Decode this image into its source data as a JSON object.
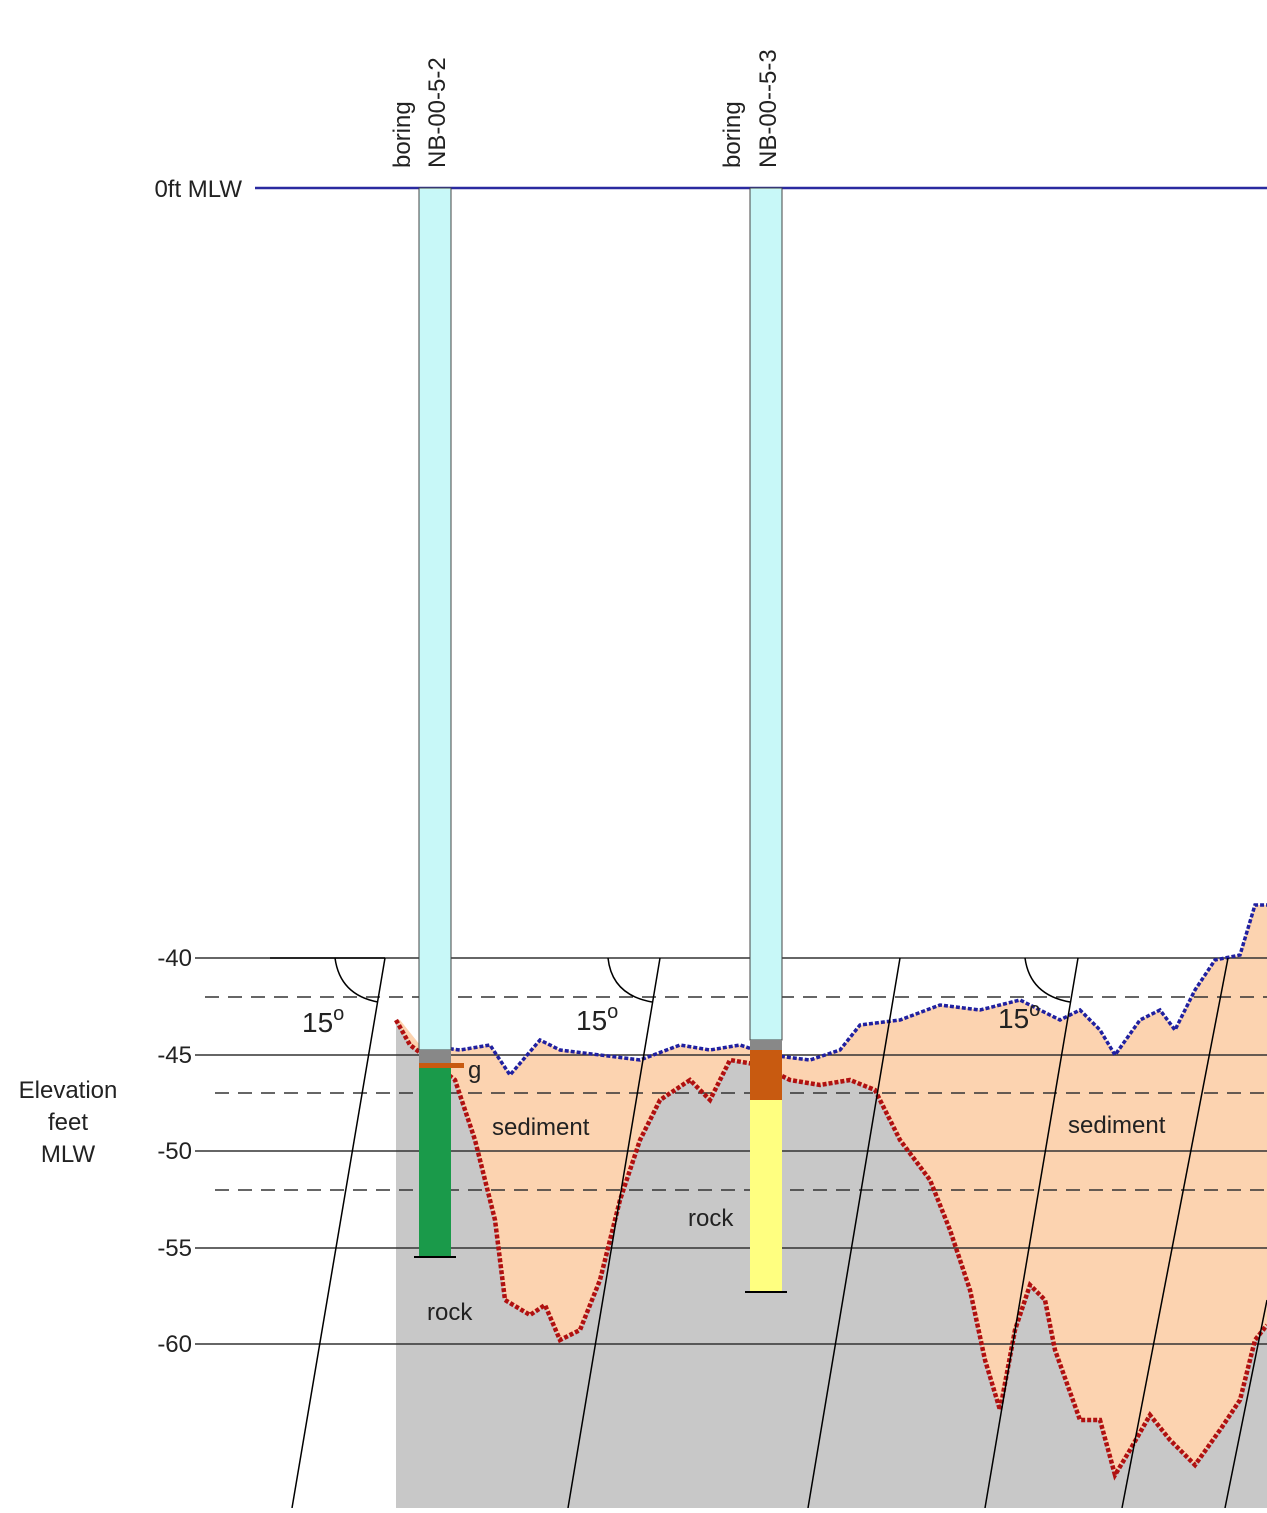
{
  "borings": [
    {
      "label": "boring",
      "id": "NB-00-5-2"
    },
    {
      "label": "boring",
      "id": "NB-00--5-3"
    }
  ],
  "datum": "0ft MLW",
  "axis": {
    "title": [
      "Elevation",
      "feet",
      "MLW"
    ],
    "ticks": [
      "-40",
      "-45",
      "-50",
      "-55",
      "-60"
    ]
  },
  "angles": [
    {
      "value": "15",
      "unit": "o"
    },
    {
      "value": "15",
      "unit": "o"
    },
    {
      "value": "15",
      "unit": "o"
    }
  ],
  "layers": {
    "sediment": [
      "sediment",
      "sediment"
    ],
    "rock": [
      "rock",
      "rock"
    ],
    "gravel": "g"
  }
}
